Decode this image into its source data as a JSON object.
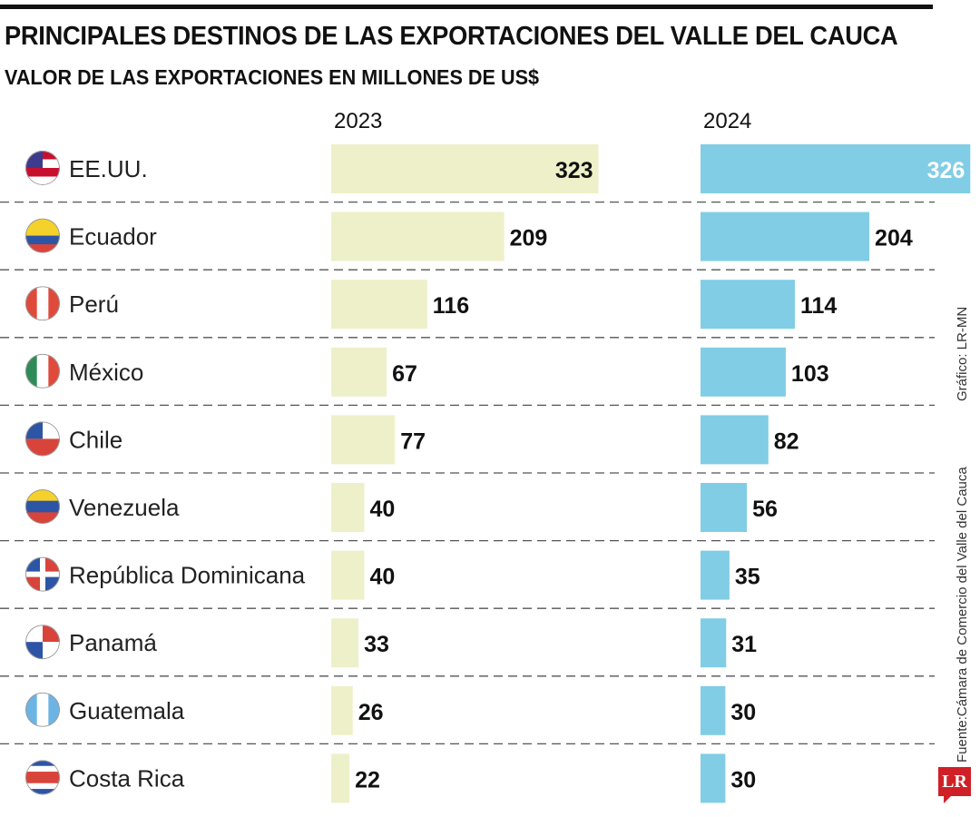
{
  "title": "PRINCIPALES DESTINOS DE LAS EXPORTACIONES DEL VALLE DEL CAUCA",
  "subtitle": "VALOR DE LAS EXPORTACIONES EN MILLONES DE US$",
  "source": "Fuente:Cámara de Comercio del Valle del Cauca",
  "credit": "Gráfico: LR-MN",
  "logo": "LR",
  "chart_data": {
    "type": "bar",
    "orientation": "horizontal",
    "categories": [
      "EE.UU.",
      "Ecuador",
      "Perú",
      "México",
      "Chile",
      "Venezuela",
      "República Dominicana",
      "Panamá",
      "Guatemala",
      "Costa Rica"
    ],
    "flag_icons": [
      "us-flag-icon",
      "ecuador-flag-icon",
      "peru-flag-icon",
      "mexico-flag-icon",
      "chile-flag-icon",
      "venezuela-flag-icon",
      "dominican-republic-flag-icon",
      "panama-flag-icon",
      "guatemala-flag-icon",
      "costa-rica-flag-icon"
    ],
    "series": [
      {
        "name": "2023",
        "color": "#eef0c9",
        "values": [
          323,
          209,
          116,
          67,
          77,
          40,
          40,
          33,
          26,
          22
        ]
      },
      {
        "name": "2024",
        "color": "#81cde5",
        "values": [
          326,
          204,
          114,
          103,
          82,
          56,
          35,
          31,
          30,
          30
        ]
      }
    ],
    "grid": false,
    "legend": "none"
  }
}
